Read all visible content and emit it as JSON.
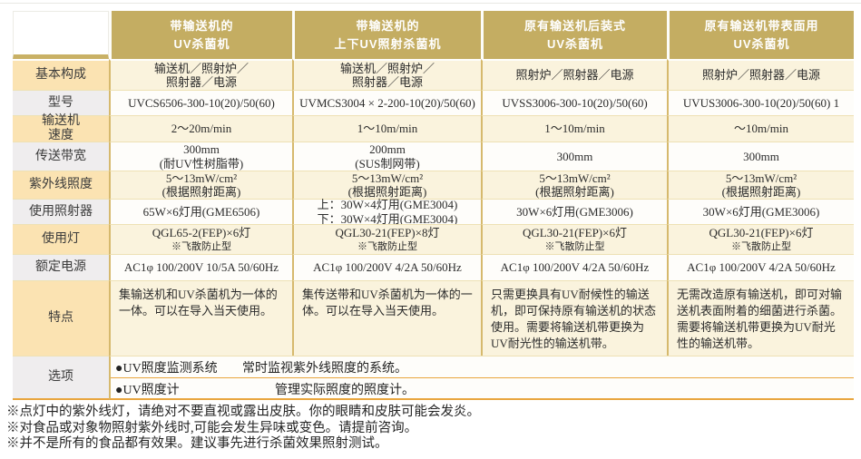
{
  "colors": {
    "header_bg": "#c4ad62",
    "header_text": "#ffffff",
    "label_peach": "#fbe3b2",
    "label_gray": "#efedee",
    "cell_cream": "#faf3dd",
    "cell_white": "#fefdfa",
    "border_gold": "#d6b96d",
    "rule_orange": "#e9a53d"
  },
  "table": {
    "headers": [
      "带输送机的\nUV杀菌机",
      "带输送机的\n上下UV照射杀菌机",
      "原有输送机后装式\nUV杀菌机",
      "原有输送机带表面用\nUV杀菌机"
    ],
    "rows": [
      {
        "label": "基本构成",
        "cells": [
          "输送机／照射炉／\n照射器／电源",
          "输送机／照射炉／\n照射器／电源",
          "照射炉／照射器／电源",
          "照射炉／照射器／电源"
        ]
      },
      {
        "label": "型号",
        "cells": [
          "UVCS6506-300-10(20)/50(60)",
          "UVMCS3004 × 2-200-10(20)/50(60)",
          "UVSS3006-300-10(20)/50(60)",
          "UVUS3006-300-10(20)/50(60) 1"
        ]
      },
      {
        "label": "输送机\n速度",
        "cells": [
          "2～20m/min",
          "1～10m/min",
          "1～10m/min",
          "～10m/min"
        ]
      },
      {
        "label": "传送带宽",
        "cells": [
          "300mm\n(耐UV性树脂带)",
          "200mm\n(SUS制网带)",
          "300mm",
          "300mm"
        ]
      },
      {
        "label": "紫外线照度",
        "cells": [
          "5～13mW/cm²\n(根据照射距离)",
          "5～13mW/cm²\n(根据照射距离)",
          "5～13mW/cm²\n(根据照射距离)",
          "5～13mW/cm²\n(根据照射距离)"
        ]
      },
      {
        "label": "使用照射器",
        "cells": [
          "65W×6灯用(GME6506)",
          "上：30W×4灯用(GME3004)\n下：30W×4灯用(GME3004)",
          "30W×6灯用(GME3006)",
          "30W×6灯用(GME3006)"
        ]
      },
      {
        "label": "使用灯",
        "cells": [
          "QGL65-2(FEP)×6灯",
          "QGL30-21(FEP)×8灯",
          "QGL30-21(FEP)×6灯",
          "QGL30-21(FEP)×6灯"
        ],
        "note": "※飞散防止型"
      },
      {
        "label": "额定电源",
        "cells": [
          "AC1φ 100/200V 10/5A 50/60Hz",
          "AC1φ 100/200V 4/2A 50/60Hz",
          "AC1φ 100/200V 4/2A 50/60Hz",
          "AC1φ 100/200V 4/2A 50/60Hz"
        ]
      },
      {
        "label": "特点",
        "cells": [
          "集输送机和UV杀菌机为一体的一体。可以在导入当天使用。",
          "集传送带和UV杀菌机为一体的一体。可以在导入当天使用。",
          "只需更换具有UV耐候性的输送机，即可保持原有输送机的状态使用。需要将输送机带更换为UV耐光性的输送机带。",
          "无需改造原有输送机，即可对输送机表面附着的细菌进行杀菌。需要将输送机带更换为UV耐光性的输送机带。"
        ]
      }
    ],
    "options_row": {
      "label": "选项",
      "items": [
        {
          "name": "●UV照度监测系统",
          "desc": "常时监视紫外线照度的系统。"
        },
        {
          "name": "●UV照度计",
          "desc": "管理实际照度的照度计。"
        }
      ]
    }
  },
  "footnotes": [
    "※点灯中的紫外线灯，请绝对不要直视或露出皮肤。你的眼睛和皮肤可能会发炎。",
    "※对食品或对象物照射紫外线时,可能会发生异味或变色。请提前咨询。",
    "※并不是所有的食品都有效果。建议事先进行杀菌效果照射测试。"
  ]
}
